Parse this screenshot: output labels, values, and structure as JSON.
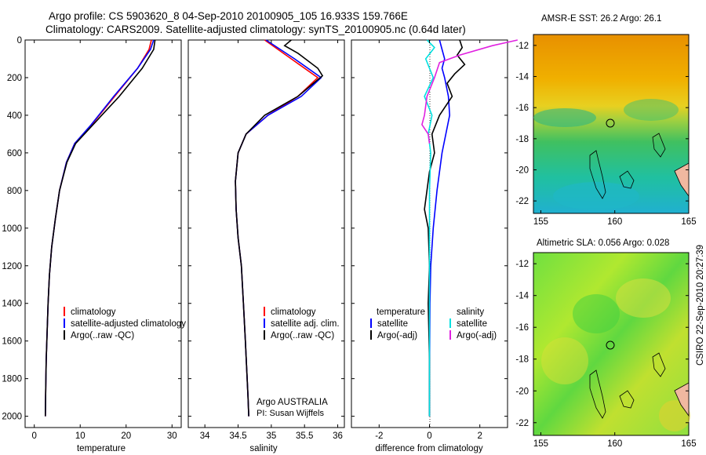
{
  "header": {
    "line1": "Argo profile: CS 5903620_8 04-Sep-2010 20100905_105 16.933S 159.766E",
    "line2": "Climatology: CARS2009. Satellite-adjusted climatology: synTS_20100905.nc (0.64d later)"
  },
  "panels": {
    "temperature": {
      "xlabel": "temperature",
      "xticks": [
        "0",
        "10",
        "20",
        "30"
      ]
    },
    "salinity": {
      "xlabel": "salinity",
      "xticks": [
        "34",
        "34.5",
        "35",
        "35.5",
        "36"
      ],
      "credit1": "Argo AUSTRALIA",
      "credit2": "PI: Susan Wijffels"
    },
    "difference": {
      "xlabel": "difference from climatology",
      "xticks": [
        "-2",
        "0",
        "2"
      ],
      "legend_temp_header": "temperature",
      "legend_sal_header": "salinity"
    },
    "depth_ticks": [
      "0",
      "200",
      "400",
      "600",
      "800",
      "1000",
      "1200",
      "1400",
      "1600",
      "1800",
      "2000"
    ]
  },
  "legends": {
    "temperature": [
      "climatology",
      "satellite-adjusted climatology",
      "Argo(..raw -QC)"
    ],
    "salinity": [
      "climatology",
      "satellite adj. clim.",
      "Argo(..raw -QC)"
    ],
    "difference_temp": [
      "satellite",
      "Argo(-adj)"
    ],
    "difference_sal": [
      "satellite",
      "Argo(-adj)"
    ]
  },
  "maps": {
    "sst_title": "AMSR-E SST: 26.2 Argo: 26.1",
    "sla_title": "Altimetric SLA: 0.056 Argo: 0.028",
    "lat_ticks": [
      "-12",
      "-14",
      "-16",
      "-18",
      "-20",
      "-22"
    ],
    "lon_ticks": [
      "155",
      "160",
      "165"
    ]
  },
  "footer_stamp": "CSIRO 22-Sep-2010 20:27:39",
  "colors": {
    "climatology": "#ff0000",
    "satellite": "#0000ff",
    "argo": "#000000",
    "sal_satellite": "#00e0e0",
    "sal_argo": "#e020e0"
  },
  "chart_data": [
    {
      "type": "line",
      "title": "",
      "xlabel": "temperature",
      "ylabel": "",
      "xlim": [
        -2,
        32
      ],
      "ylim": [
        2060,
        0
      ],
      "series": [
        {
          "name": "climatology",
          "x": [
            25.5,
            25,
            22.5,
            17.5,
            12.5,
            8.8,
            7,
            5.5,
            4.6,
            3.8,
            3.3,
            3,
            2.8,
            2.6,
            2.5,
            2.4
          ],
          "y": [
            0,
            50,
            150,
            300,
            450,
            550,
            650,
            800,
            950,
            1100,
            1250,
            1400,
            1550,
            1700,
            1850,
            2000
          ]
        },
        {
          "name": "satellite-adjusted climatology",
          "x": [
            26,
            25.3,
            22.5,
            17.3,
            12.4,
            8.8,
            7,
            5.5,
            4.6,
            3.8,
            3.3,
            3,
            2.8,
            2.6,
            2.5,
            2.4
          ],
          "y": [
            0,
            50,
            150,
            300,
            450,
            550,
            650,
            800,
            950,
            1100,
            1250,
            1400,
            1550,
            1700,
            1850,
            2000
          ]
        },
        {
          "name": "Argo(..raw -QC)",
          "x": [
            26.3,
            26,
            23.5,
            18.5,
            12.8,
            9,
            7.1,
            5.5,
            4.6,
            3.8,
            3.3,
            3,
            2.8,
            2.6,
            2.5,
            2.4
          ],
          "y": [
            0,
            50,
            150,
            300,
            450,
            550,
            650,
            800,
            950,
            1100,
            1250,
            1400,
            1550,
            1700,
            1850,
            2000
          ]
        }
      ]
    },
    {
      "type": "line",
      "title": "",
      "xlabel": "salinity",
      "ylabel": "",
      "xlim": [
        33.75,
        36.1
      ],
      "ylim": [
        2060,
        0
      ],
      "series": [
        {
          "name": "climatology",
          "x": [
            34.9,
            35.3,
            35.7,
            35.4,
            34.95,
            34.62,
            34.5,
            34.46,
            34.47,
            34.5,
            34.55,
            34.58,
            34.61,
            34.63,
            34.65,
            34.66
          ],
          "y": [
            0,
            100,
            200,
            300,
            400,
            500,
            600,
            750,
            900,
            1050,
            1200,
            1400,
            1600,
            1750,
            1900,
            2000
          ]
        },
        {
          "name": "satellite adj. clim.",
          "x": [
            34.92,
            35.35,
            35.75,
            35.45,
            34.95,
            34.62,
            34.5,
            34.46,
            34.47,
            34.5,
            34.55,
            34.58,
            34.61,
            34.63,
            34.65,
            34.66
          ],
          "y": [
            0,
            100,
            200,
            300,
            400,
            500,
            600,
            750,
            900,
            1050,
            1200,
            1400,
            1600,
            1750,
            1900,
            2000
          ]
        },
        {
          "name": "Argo(..raw -QC)",
          "x": [
            35.3,
            35.2,
            35.4,
            35.7,
            35.77,
            35.4,
            34.9,
            34.62,
            34.5,
            34.46,
            34.47,
            34.5,
            34.55,
            34.58,
            34.61,
            34.63,
            34.65,
            34.66
          ],
          "y": [
            0,
            30,
            70,
            150,
            190,
            300,
            400,
            500,
            600,
            750,
            900,
            1050,
            1200,
            1400,
            1600,
            1750,
            1900,
            2000
          ]
        }
      ]
    },
    {
      "type": "line",
      "title": "",
      "xlabel": "difference from climatology",
      "ylabel": "",
      "xlim": [
        -3.1,
        3.1
      ],
      "ylim": [
        2060,
        0
      ],
      "series": [
        {
          "name": "temperature satellite",
          "x": [
            0.4,
            0.5,
            0.6,
            0.5,
            0.6,
            0.75,
            0.8,
            0.5,
            0.3,
            0.15,
            0.05,
            0.02,
            0.01,
            0,
            0
          ],
          "y": [
            0,
            50,
            100,
            150,
            200,
            300,
            400,
            600,
            800,
            1000,
            1200,
            1400,
            1600,
            1800,
            2000
          ]
        },
        {
          "name": "temperature Argo(-adj)",
          "x": [
            1.2,
            1.3,
            1.1,
            1.4,
            1.0,
            0.7,
            0.9,
            0.4,
            0.1,
            0.2,
            0,
            -0.1,
            -0.2,
            -0.05,
            0,
            -0.05,
            0,
            0
          ],
          "y": [
            0,
            40,
            80,
            130,
            180,
            230,
            300,
            400,
            500,
            600,
            700,
            800,
            900,
            1000,
            1200,
            1400,
            1700,
            2000
          ]
        },
        {
          "name": "salinity satellite",
          "x": [
            -0.1,
            0.2,
            -0.15,
            0.15,
            -0.2,
            0.1,
            -0.05,
            0.05,
            0,
            0
          ],
          "y": [
            0,
            40,
            100,
            200,
            300,
            400,
            500,
            600,
            800,
            2000
          ]
        },
        {
          "name": "salinity Argo(-adj)",
          "x": [
            3.5,
            2.5,
            1.2,
            0.4,
            0.2,
            -0.1,
            -0.2,
            -0.3,
            -0.05,
            0
          ],
          "y": [
            0,
            30,
            80,
            120,
            200,
            300,
            400,
            450,
            500,
            550
          ]
        }
      ]
    }
  ]
}
